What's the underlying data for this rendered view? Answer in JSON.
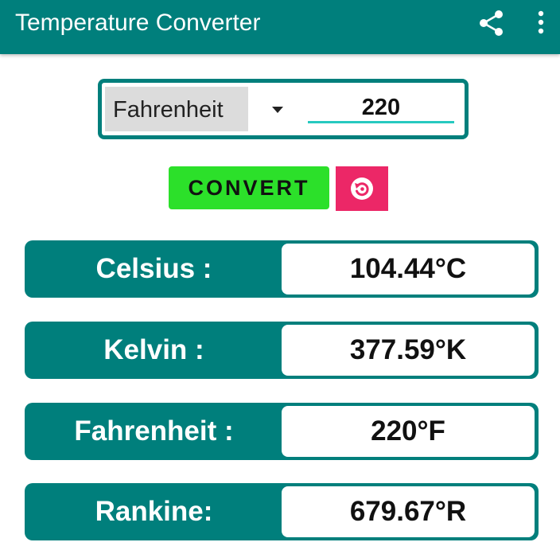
{
  "app_bar": {
    "title": "Temperature Converter",
    "share_icon": "share-icon",
    "menu_icon": "more-vert-icon",
    "color": "#007f7c"
  },
  "input": {
    "selected_unit": "Fahrenheit",
    "value": "220"
  },
  "actions": {
    "convert_label": "CONVERT",
    "convert_color": "#2ce02a",
    "reset_icon": "reset-icon",
    "reset_color": "#ec2767"
  },
  "results": [
    {
      "label": "Celsius :",
      "value": "104.44°C"
    },
    {
      "label": "Kelvin :",
      "value": "377.59°K"
    },
    {
      "label": "Fahrenheit :",
      "value": "220°F"
    },
    {
      "label": "Rankine:",
      "value": "679.67°R"
    }
  ]
}
